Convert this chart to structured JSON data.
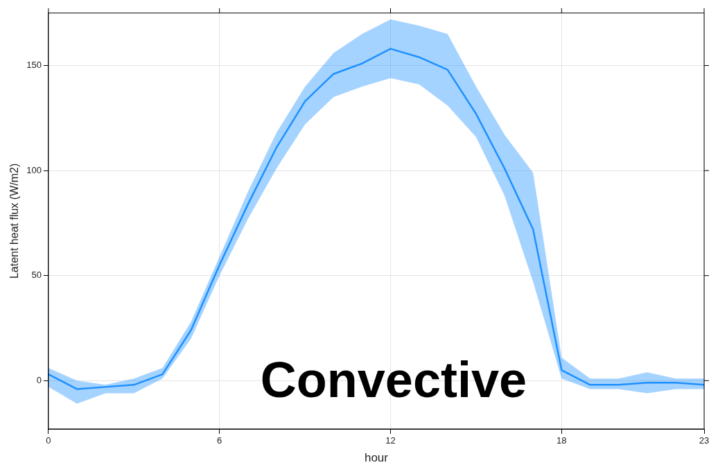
{
  "chart_data": {
    "type": "line",
    "xlabel": "hour",
    "ylabel": "Latent heat flux (W/m2)",
    "x": [
      0,
      1,
      2,
      3,
      4,
      5,
      6,
      7,
      8,
      9,
      10,
      11,
      12,
      13,
      14,
      15,
      16,
      17,
      18,
      19,
      20,
      21,
      22,
      23
    ],
    "series": [
      {
        "color": "#1e90ff",
        "values": [
          3,
          -4,
          -3,
          -2,
          3,
          24,
          55,
          84,
          111,
          133,
          146,
          151,
          158,
          154,
          148,
          127,
          101,
          72,
          5,
          -2,
          -2,
          -1,
          -1,
          -2
        ],
        "lower": [
          -3,
          -11,
          -6,
          -6,
          1,
          20,
          50,
          77,
          101,
          122,
          135,
          140,
          144,
          141,
          131,
          116,
          88,
          47,
          1,
          -4,
          -4,
          -6,
          -4,
          -4
        ],
        "upper": [
          6,
          0,
          -2,
          1,
          6,
          28,
          59,
          90,
          118,
          140,
          156,
          165,
          172,
          169,
          165,
          140,
          117,
          99,
          11,
          1,
          1,
          4,
          1,
          1
        ]
      }
    ],
    "xlim": [
      0,
      23
    ],
    "xticks": [
      0,
      6,
      12,
      18,
      23
    ],
    "ylim": [
      -23,
      175
    ],
    "yticks": [
      0,
      50,
      100,
      150
    ],
    "grid": true,
    "marker": "none",
    "line_style": "solid",
    "legend": false,
    "annotations": [
      "Convective"
    ]
  }
}
